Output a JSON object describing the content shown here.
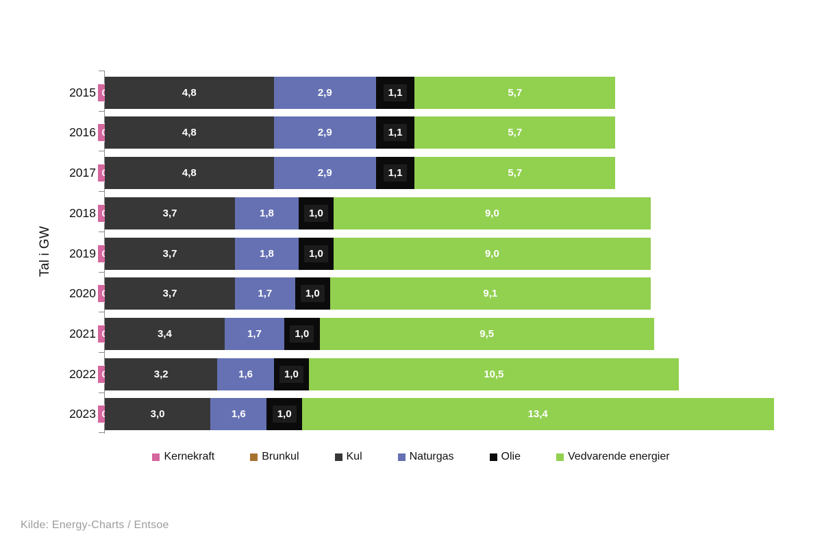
{
  "chart_data": {
    "type": "bar",
    "orientation": "horizontal-stacked",
    "title": "",
    "ylabel": "Tal i GW",
    "xlabel": "",
    "grid": false,
    "legend_position": "bottom",
    "axis_color": "#8a8a8a",
    "unit": "GW",
    "categories": [
      "2015",
      "2016",
      "2017",
      "2018",
      "2019",
      "2020",
      "2021",
      "2022",
      "2023"
    ],
    "series": [
      {
        "name": "Kernekraft",
        "color": "#d4679d",
        "label_style": "zero-box",
        "values": [
          0,
          0,
          0,
          0,
          0,
          0,
          0,
          0,
          0
        ],
        "labels": [
          "0",
          "0",
          "0",
          "0",
          "0",
          "0",
          "0",
          "0",
          "0"
        ]
      },
      {
        "name": "Brunkul",
        "color": "#a6732f",
        "label_style": "none",
        "values": [
          0,
          0,
          0,
          0,
          0,
          0,
          0,
          0,
          0
        ],
        "labels": [
          "",
          "",
          "",
          "",
          "",
          "",
          "",
          "",
          ""
        ]
      },
      {
        "name": "Kul",
        "color": "#373737",
        "label_style": "plain",
        "values": [
          4.8,
          4.8,
          4.8,
          3.7,
          3.7,
          3.7,
          3.4,
          3.2,
          3.0
        ],
        "labels": [
          "4,8",
          "4,8",
          "4,8",
          "3,7",
          "3,7",
          "3,7",
          "3,4",
          "3,2",
          "3,0"
        ]
      },
      {
        "name": "Naturgas",
        "color": "#6571b3",
        "label_style": "plain",
        "values": [
          2.9,
          2.9,
          2.9,
          1.8,
          1.8,
          1.7,
          1.7,
          1.6,
          1.6
        ],
        "labels": [
          "2,9",
          "2,9",
          "2,9",
          "1,8",
          "1,8",
          "1,7",
          "1,7",
          "1,6",
          "1,6"
        ]
      },
      {
        "name": "Olie",
        "color": "#0b0b0b",
        "label_style": "dark-box",
        "values": [
          1.1,
          1.1,
          1.1,
          1.0,
          1.0,
          1.0,
          1.0,
          1.0,
          1.0
        ],
        "labels": [
          "1,1",
          "1,1",
          "1,1",
          "1,0",
          "1,0",
          "1,0",
          "1,0",
          "1,0",
          "1,0"
        ]
      },
      {
        "name": "Vedvarende energier",
        "color": "#92d050",
        "label_style": "plain",
        "values": [
          5.7,
          5.7,
          5.7,
          9.0,
          9.0,
          9.1,
          9.5,
          10.5,
          13.4
        ],
        "labels": [
          "5,7",
          "5,7",
          "5,7",
          "9,0",
          "9,0",
          "9,1",
          "9,5",
          "10,5",
          "13,4"
        ]
      }
    ]
  },
  "source": {
    "text": "Kilde: Energy-Charts / Entsoe"
  }
}
